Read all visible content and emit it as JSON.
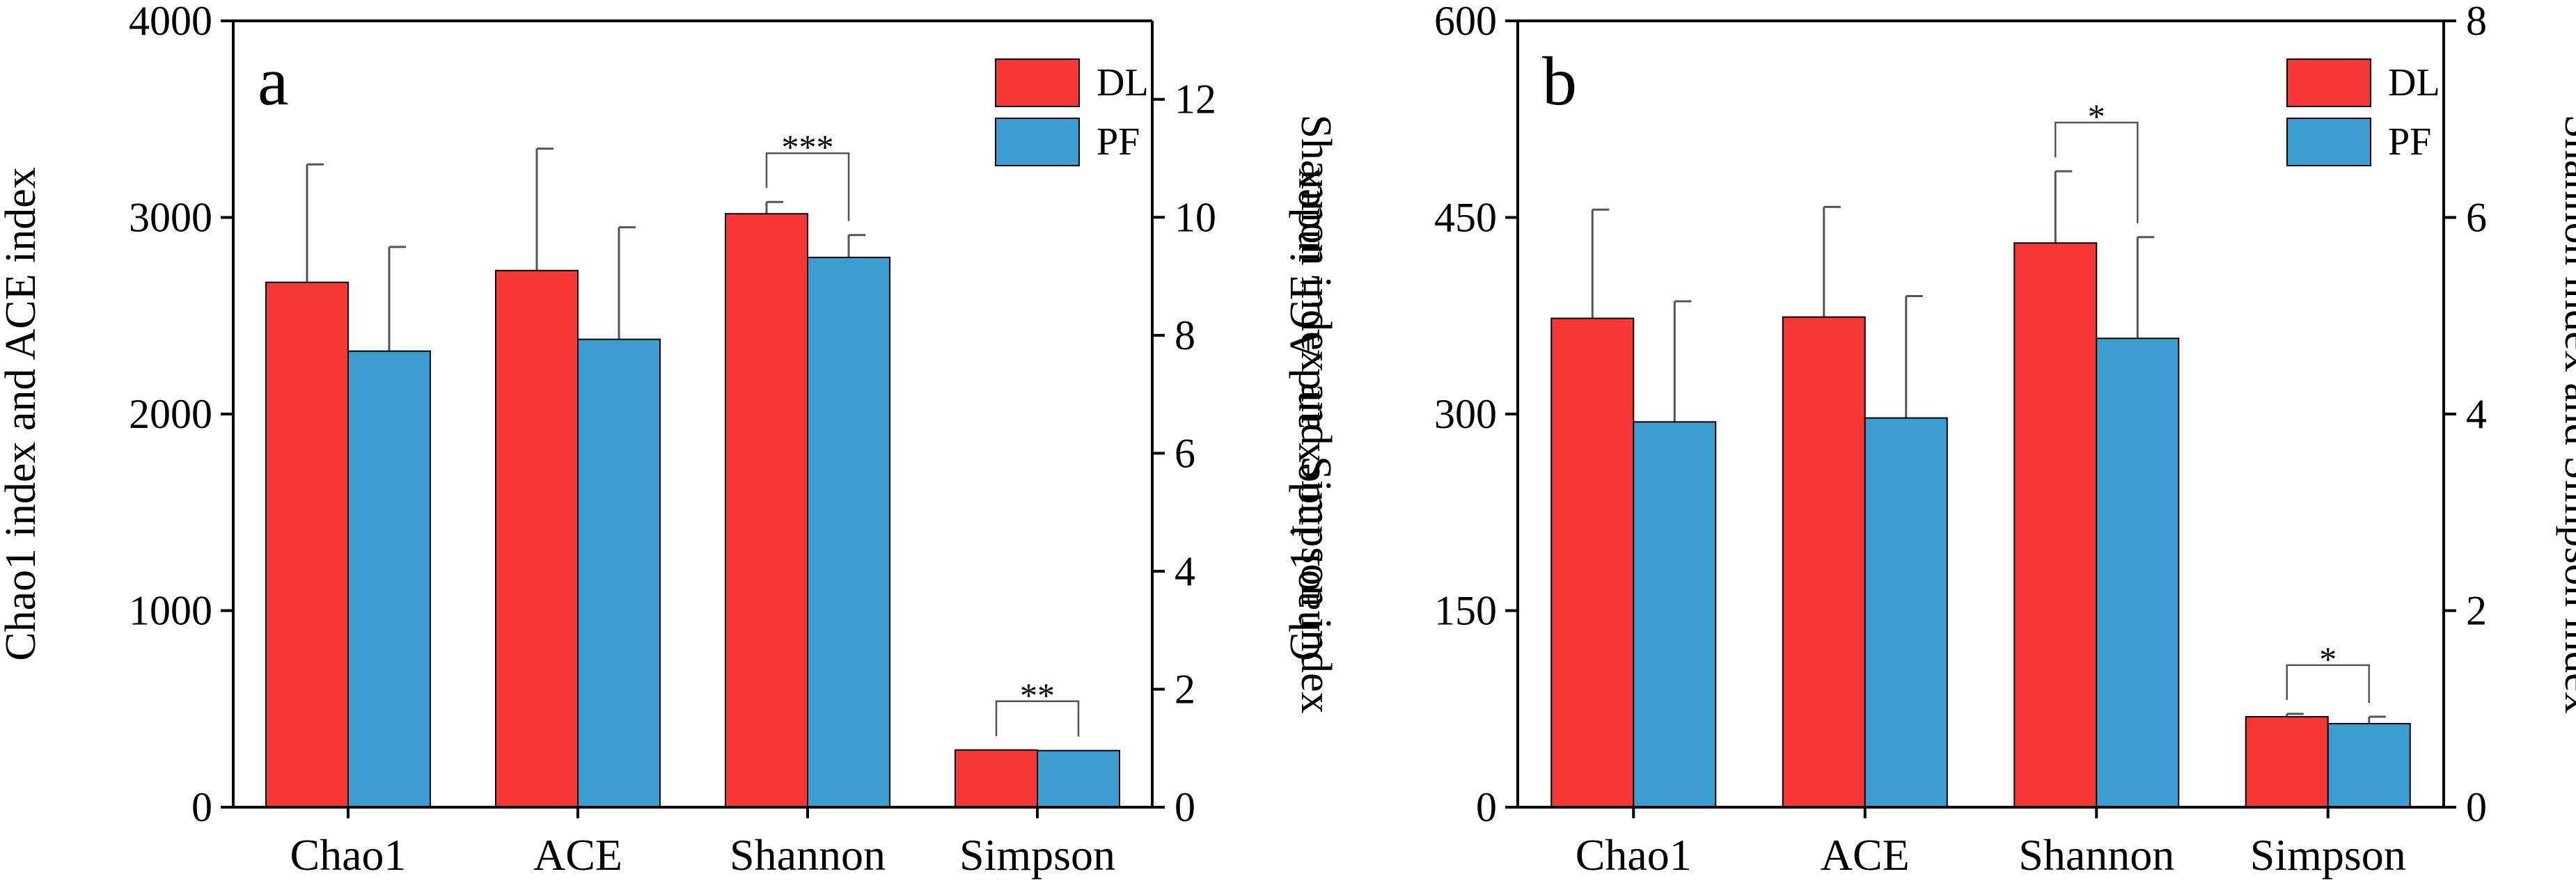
{
  "colors": {
    "DL": "#f73636",
    "PF": "#3b9dd0",
    "axis": "#000000"
  },
  "chart_data": [
    {
      "type": "bar",
      "panel_label": "a",
      "categories": [
        "Chao1",
        "ACE",
        "Shannon",
        "Simpson"
      ],
      "ylabel_left": "Chao1 index and ACE index",
      "ylabel_right": "Shannon index and Simpson index",
      "ylim_left": [
        0,
        4000
      ],
      "yticks_left": [
        0,
        1000,
        2000,
        3000,
        4000
      ],
      "ylim_right": [
        0,
        13.33
      ],
      "yticks_right": [
        0,
        2,
        4,
        6,
        8,
        10,
        12
      ],
      "axis_for_category": [
        "left",
        "left",
        "right",
        "right"
      ],
      "legend": {
        "position": "top-right",
        "entries": [
          "DL",
          "PF"
        ]
      },
      "series": [
        {
          "name": "DL",
          "values": [
            2670,
            2730,
            10.06,
            0.97
          ],
          "errors": [
            600,
            620,
            0.2,
            0
          ]
        },
        {
          "name": "PF",
          "values": [
            2320,
            2380,
            9.32,
            0.96
          ],
          "errors": [
            530,
            570,
            0.38,
            0
          ]
        }
      ],
      "significance": [
        {
          "category": "Shannon",
          "label": "***"
        },
        {
          "category": "Simpson",
          "label": "**"
        }
      ]
    },
    {
      "type": "bar",
      "panel_label": "b",
      "categories": [
        "Chao1",
        "ACE",
        "Shannon",
        "Simpson"
      ],
      "ylabel_left": "Chao1 index and ACE index",
      "ylabel_right": "Shannon index and Simpson index",
      "ylim_left": [
        0,
        600
      ],
      "yticks_left": [
        0,
        150,
        300,
        450,
        600
      ],
      "ylim_right": [
        0,
        8
      ],
      "yticks_right": [
        0,
        2,
        4,
        6,
        8
      ],
      "axis_for_category": [
        "left",
        "left",
        "right",
        "right"
      ],
      "legend": {
        "position": "top-right",
        "entries": [
          "DL",
          "PF"
        ]
      },
      "series": [
        {
          "name": "DL",
          "values": [
            373,
            374,
            5.74,
            0.92
          ],
          "errors": [
            83,
            84,
            0.73,
            0.03
          ]
        },
        {
          "name": "PF",
          "values": [
            294,
            297,
            4.77,
            0.85
          ],
          "errors": [
            92,
            93,
            1.03,
            0.07
          ]
        }
      ],
      "significance": [
        {
          "category": "Shannon",
          "label": "*"
        },
        {
          "category": "Simpson",
          "label": "*"
        }
      ]
    }
  ]
}
